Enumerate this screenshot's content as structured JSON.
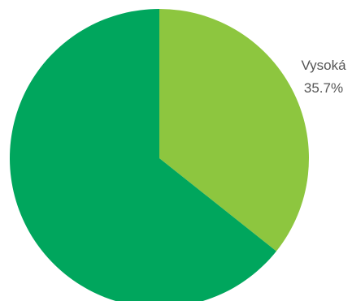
{
  "chart_data": {
    "type": "pie",
    "slices": [
      {
        "label": "Vysoká",
        "value": 35.7,
        "display": "35.7%",
        "color": "#8dc63f",
        "show_label": true
      },
      {
        "label": "",
        "value": 64.3,
        "display": "",
        "color": "#00a65d",
        "show_label": false
      }
    ],
    "start_angle_deg": 0,
    "direction": "clockwise",
    "legend": "none",
    "title": ""
  }
}
